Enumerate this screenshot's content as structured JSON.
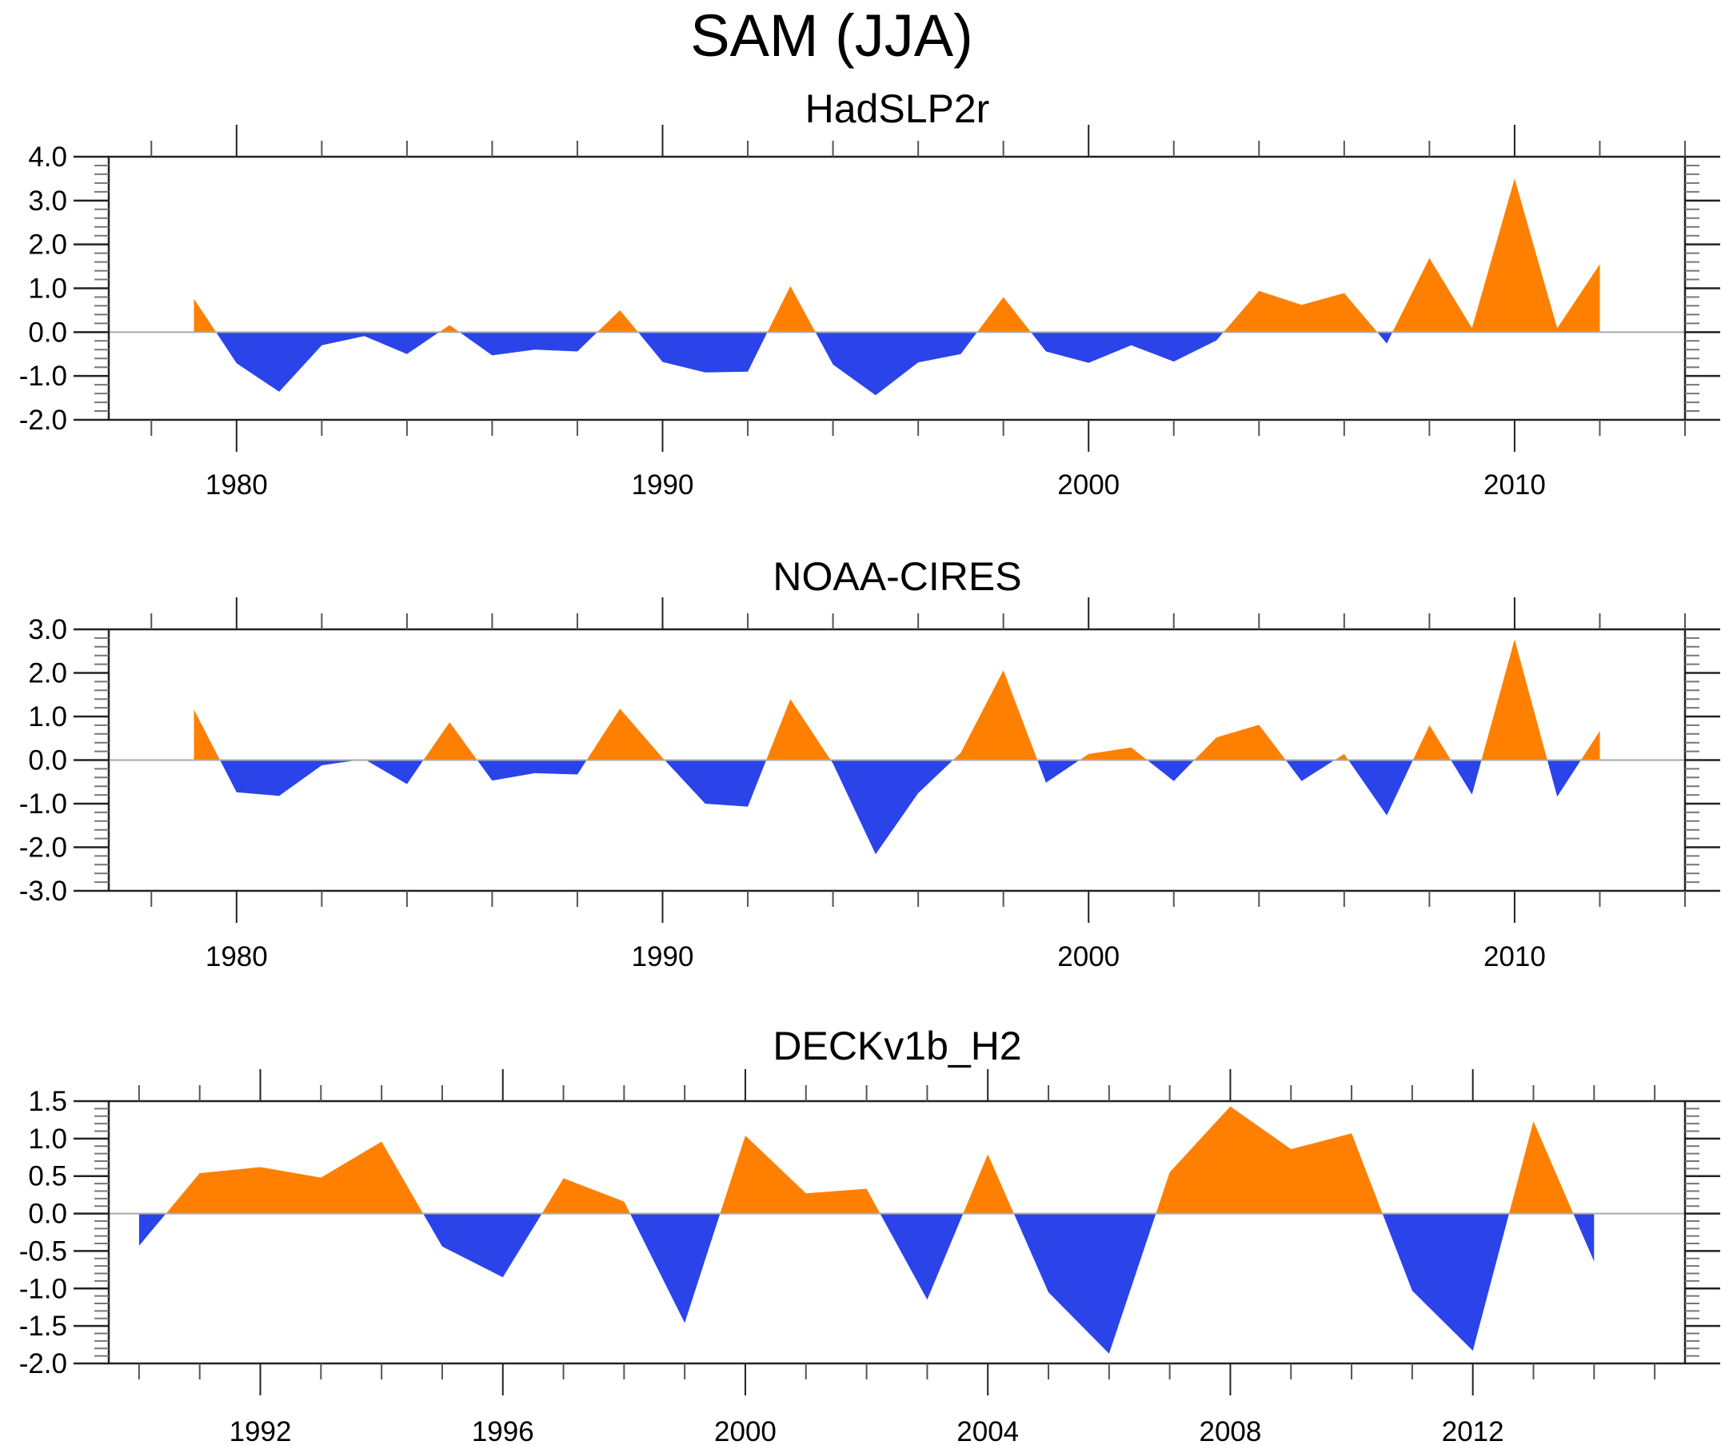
{
  "chart_data": {
    "title": "SAM (JJA)",
    "type": "area",
    "positive_color": "#ff8000",
    "negative_color": "#2a44ea",
    "panels": [
      {
        "title": "HadSLP2r",
        "type": "area",
        "xlabel": "",
        "ylabel": "",
        "xlim": [
          1977,
          2014
        ],
        "ylim": [
          -2.0,
          4.0
        ],
        "yticks": [
          4.0,
          3.0,
          2.0,
          1.0,
          0.0,
          -1.0,
          -2.0
        ],
        "ytick_labels": [
          "4.0",
          "3.0",
          "2.0",
          "1.0",
          "0.0",
          "-1.0",
          "-2.0"
        ],
        "y_minor_step": 0.2,
        "xticks_major": [
          1980,
          1990,
          2000,
          2010
        ],
        "xtick_labels": [
          "1980",
          "1990",
          "2000",
          "2010"
        ],
        "x_minor_step": 2,
        "x": [
          1979,
          1980,
          1981,
          1982,
          1983,
          1984,
          1985,
          1986,
          1987,
          1988,
          1989,
          1990,
          1991,
          1992,
          1993,
          1994,
          1995,
          1996,
          1997,
          1998,
          1999,
          2000,
          2001,
          2002,
          2003,
          2004,
          2005,
          2006,
          2007,
          2008,
          2009,
          2010,
          2011,
          2012
        ],
        "values": [
          0.76,
          -0.71,
          -1.36,
          -0.3,
          -0.09,
          -0.5,
          0.16,
          -0.53,
          -0.4,
          -0.44,
          0.5,
          -0.68,
          -0.92,
          -0.9,
          1.05,
          -0.74,
          -1.44,
          -0.69,
          -0.5,
          0.8,
          -0.44,
          -0.7,
          -0.3,
          -0.67,
          -0.19,
          0.94,
          0.62,
          0.89,
          -0.26,
          1.69,
          0.09,
          3.5,
          0.09,
          1.55
        ]
      },
      {
        "title": "NOAA-CIRES",
        "type": "area",
        "xlabel": "",
        "ylabel": "",
        "xlim": [
          1977,
          2014
        ],
        "ylim": [
          -3.0,
          3.0
        ],
        "yticks": [
          3.0,
          2.0,
          1.0,
          0.0,
          -1.0,
          -2.0,
          -3.0
        ],
        "ytick_labels": [
          "3.0",
          "2.0",
          "1.0",
          "0.0",
          "-1.0",
          "-2.0",
          "-3.0"
        ],
        "y_minor_step": 0.2,
        "xticks_major": [
          1980,
          1990,
          2000,
          2010
        ],
        "xtick_labels": [
          "1980",
          "1990",
          "2000",
          "2010"
        ],
        "x_minor_step": 2,
        "x": [
          1979,
          1980,
          1981,
          1982,
          1983,
          1984,
          1985,
          1986,
          1987,
          1988,
          1989,
          1990,
          1991,
          1992,
          1993,
          1994,
          1995,
          1996,
          1997,
          1998,
          1999,
          2000,
          2001,
          2002,
          2003,
          2004,
          2005,
          2006,
          2007,
          2008,
          2009,
          2010,
          2011,
          2012
        ],
        "values": [
          1.16,
          -0.74,
          -0.82,
          -0.12,
          0.02,
          -0.55,
          0.87,
          -0.47,
          -0.3,
          -0.33,
          1.18,
          0.05,
          -1.0,
          -1.07,
          1.4,
          -0.08,
          -2.16,
          -0.76,
          0.17,
          2.06,
          -0.52,
          0.14,
          0.29,
          -0.48,
          0.52,
          0.81,
          -0.48,
          0.14,
          -1.27,
          0.8,
          -0.79,
          2.77,
          -0.84,
          0.67
        ]
      },
      {
        "title": "DECKv1b_H2",
        "type": "area",
        "xlabel": "",
        "ylabel": "",
        "xlim": [
          1989.5,
          2015.5
        ],
        "ylim": [
          -2.0,
          1.5
        ],
        "yticks": [
          1.5,
          1.0,
          0.5,
          0.0,
          -0.5,
          -1.0,
          -1.5,
          -2.0
        ],
        "ytick_labels": [
          "1.5",
          "1.0",
          "0.5",
          "0.0",
          "-0.5",
          "-1.0",
          "-1.5",
          "-2.0"
        ],
        "y_minor_step": 0.1,
        "xticks_major": [
          1992,
          1996,
          2000,
          2004,
          2008,
          2012
        ],
        "xtick_labels": [
          "1992",
          "1996",
          "2000",
          "2004",
          "2008",
          "2012"
        ],
        "x_minor_step": 1,
        "x": [
          1990,
          1991,
          1992,
          1993,
          1994,
          1995,
          1996,
          1997,
          1998,
          1999,
          2000,
          2001,
          2002,
          2003,
          2004,
          2005,
          2006,
          2007,
          2008,
          2009,
          2010,
          2011,
          2012,
          2013,
          2014
        ],
        "values": [
          -0.43,
          0.54,
          0.62,
          0.48,
          0.96,
          -0.44,
          -0.85,
          0.47,
          0.16,
          -1.46,
          1.04,
          0.27,
          0.33,
          -1.15,
          0.79,
          -1.05,
          -1.87,
          0.55,
          1.43,
          0.86,
          1.07,
          -1.03,
          -1.83,
          1.23,
          -0.64
        ]
      }
    ]
  }
}
